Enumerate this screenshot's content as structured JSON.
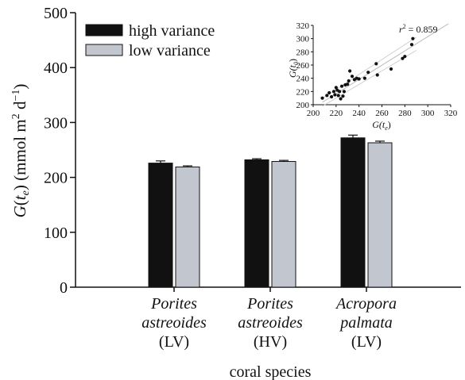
{
  "chart_data": [
    {
      "type": "bar",
      "title": "",
      "xlabel": "coral species",
      "ylabel": "G(t_e) (mmol m^2 d^-1)",
      "ylabel_parts": {
        "main": "G",
        "open": "(",
        "t": "t",
        "sub": "e",
        "close": ")",
        "units": " (mmol m",
        "sq": "2",
        "mid": " d",
        "neg": "−1",
        "end": ")"
      },
      "ylim": [
        0,
        500
      ],
      "yticks": [
        0,
        100,
        200,
        300,
        400,
        500
      ],
      "categories": [
        {
          "lines": [
            "Porites",
            "astreoides",
            "(LV)"
          ],
          "italic": [
            true,
            true,
            false
          ]
        },
        {
          "lines": [
            "Porites",
            "astreoides",
            "(HV)"
          ],
          "italic": [
            true,
            true,
            false
          ]
        },
        {
          "lines": [
            "Acropora",
            "palmata",
            "(LV)"
          ],
          "italic": [
            true,
            true,
            false
          ]
        }
      ],
      "series": [
        {
          "name": "high variance",
          "color": "#111111",
          "values": [
            226,
            232,
            272
          ],
          "errors": [
            4,
            2,
            5
          ]
        },
        {
          "name": "low variance",
          "color": "#c2c7cf",
          "values": [
            219,
            229,
            263
          ],
          "errors": [
            2,
            2,
            3
          ]
        }
      ],
      "legend": "top-left",
      "grid": false
    },
    {
      "type": "scatter",
      "title": "",
      "xlabel": "G(t_e)",
      "ylabel": "G(t_0)",
      "xlabel_parts": {
        "main": "G(t",
        "sub": "e",
        "end": ")"
      },
      "ylabel_parts": {
        "main": "G(t",
        "sub": "0",
        "end": ")"
      },
      "annotation": {
        "r": "r",
        "sup": "2",
        "text": " = 0.859"
      },
      "xlim": [
        200,
        320
      ],
      "ylim": [
        200,
        320
      ],
      "xticks": [
        200,
        220,
        240,
        260,
        280,
        300,
        320
      ],
      "yticks": [
        200,
        220,
        240,
        260,
        280,
        300,
        320
      ],
      "points": [
        [
          208,
          210
        ],
        [
          212,
          214
        ],
        [
          214,
          218
        ],
        [
          216,
          212
        ],
        [
          218,
          220
        ],
        [
          219,
          215
        ],
        [
          220,
          226
        ],
        [
          221,
          222
        ],
        [
          222,
          214
        ],
        [
          223,
          220
        ],
        [
          224,
          209
        ],
        [
          225,
          228
        ],
        [
          226,
          213
        ],
        [
          227,
          220
        ],
        [
          228,
          230
        ],
        [
          230,
          231
        ],
        [
          231,
          236
        ],
        [
          232,
          251
        ],
        [
          234,
          243
        ],
        [
          236,
          238
        ],
        [
          238,
          240
        ],
        [
          240,
          239
        ],
        [
          245,
          240
        ],
        [
          248,
          249
        ],
        [
          255,
          262
        ],
        [
          256,
          245
        ],
        [
          268,
          254
        ],
        [
          278,
          270
        ],
        [
          280,
          273
        ],
        [
          286,
          291
        ],
        [
          287,
          300
        ]
      ],
      "fit": {
        "slope": 1.08,
        "intercept": -21
      },
      "grid": false
    }
  ]
}
